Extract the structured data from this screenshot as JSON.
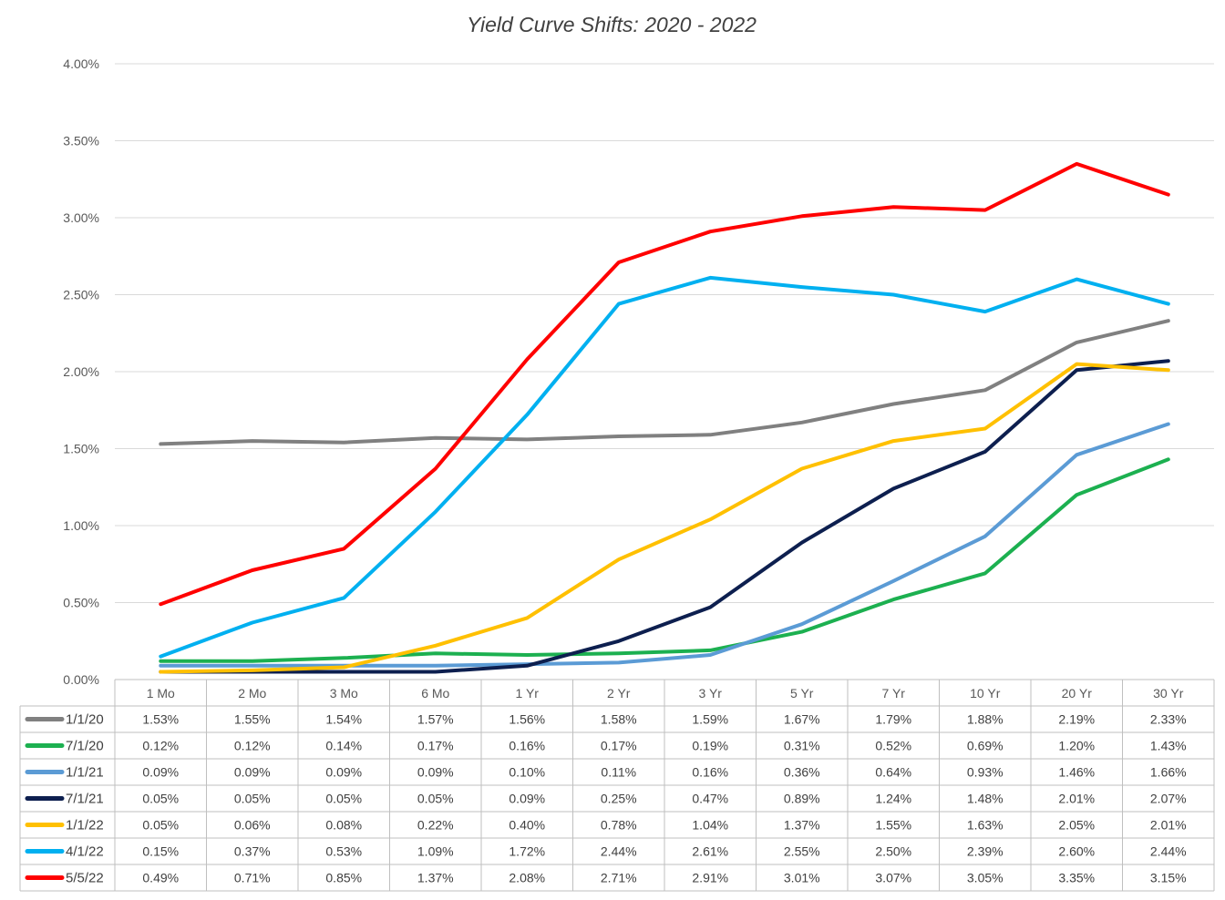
{
  "chart_data": {
    "type": "line",
    "title": "Yield Curve Shifts: 2020 - 2022",
    "categories": [
      "1 Mo",
      "2 Mo",
      "3 Mo",
      "6 Mo",
      "1 Yr",
      "2 Yr",
      "3 Yr",
      "5 Yr",
      "7 Yr",
      "10 Yr",
      "20 Yr",
      "30 Yr"
    ],
    "ylim": [
      0,
      4.0
    ],
    "yticks": [
      "0.00%",
      "0.50%",
      "1.00%",
      "1.50%",
      "2.00%",
      "2.50%",
      "3.00%",
      "3.50%",
      "4.00%"
    ],
    "grid": true,
    "data_table": true,
    "series": [
      {
        "name": "1/1/20",
        "color": "#808080",
        "values": [
          1.53,
          1.55,
          1.54,
          1.57,
          1.56,
          1.58,
          1.59,
          1.67,
          1.79,
          1.88,
          2.19,
          2.33
        ],
        "cells": [
          "1.53%",
          "1.55%",
          "1.54%",
          "1.57%",
          "1.56%",
          "1.58%",
          "1.59%",
          "1.67%",
          "1.79%",
          "1.88%",
          "2.19%",
          "2.33%"
        ]
      },
      {
        "name": "7/1/20",
        "color": "#1cb050",
        "values": [
          0.12,
          0.12,
          0.14,
          0.17,
          0.16,
          0.17,
          0.19,
          0.31,
          0.52,
          0.69,
          1.2,
          1.43
        ],
        "cells": [
          "0.12%",
          "0.12%",
          "0.14%",
          "0.17%",
          "0.16%",
          "0.17%",
          "0.19%",
          "0.31%",
          "0.52%",
          "0.69%",
          "1.20%",
          "1.43%"
        ]
      },
      {
        "name": "1/1/21",
        "color": "#5b9bd5",
        "values": [
          0.09,
          0.09,
          0.09,
          0.09,
          0.1,
          0.11,
          0.16,
          0.36,
          0.64,
          0.93,
          1.46,
          1.66
        ],
        "cells": [
          "0.09%",
          "0.09%",
          "0.09%",
          "0.09%",
          "0.10%",
          "0.11%",
          "0.16%",
          "0.36%",
          "0.64%",
          "0.93%",
          "1.46%",
          "1.66%"
        ]
      },
      {
        "name": "7/1/21",
        "color": "#0d1f4f",
        "values": [
          0.05,
          0.05,
          0.05,
          0.05,
          0.09,
          0.25,
          0.47,
          0.89,
          1.24,
          1.48,
          2.01,
          2.07
        ],
        "cells": [
          "0.05%",
          "0.05%",
          "0.05%",
          "0.05%",
          "0.09%",
          "0.25%",
          "0.47%",
          "0.89%",
          "1.24%",
          "1.48%",
          "2.01%",
          "2.07%"
        ]
      },
      {
        "name": "1/1/22",
        "color": "#ffc000",
        "values": [
          0.05,
          0.06,
          0.08,
          0.22,
          0.4,
          0.78,
          1.04,
          1.37,
          1.55,
          1.63,
          2.05,
          2.01
        ],
        "cells": [
          "0.05%",
          "0.06%",
          "0.08%",
          "0.22%",
          "0.40%",
          "0.78%",
          "1.04%",
          "1.37%",
          "1.55%",
          "1.63%",
          "2.05%",
          "2.01%"
        ]
      },
      {
        "name": "4/1/22",
        "color": "#00b0f0",
        "values": [
          0.15,
          0.37,
          0.53,
          1.09,
          1.72,
          2.44,
          2.61,
          2.55,
          2.5,
          2.39,
          2.6,
          2.44
        ],
        "cells": [
          "0.15%",
          "0.37%",
          "0.53%",
          "1.09%",
          "1.72%",
          "2.44%",
          "2.61%",
          "2.55%",
          "2.50%",
          "2.39%",
          "2.60%",
          "2.44%"
        ]
      },
      {
        "name": "5/5/22",
        "color": "#ff0000",
        "values": [
          0.49,
          0.71,
          0.85,
          1.37,
          2.08,
          2.71,
          2.91,
          3.01,
          3.07,
          3.05,
          3.35,
          3.15
        ],
        "cells": [
          "0.49%",
          "0.71%",
          "0.85%",
          "1.37%",
          "2.08%",
          "2.71%",
          "2.91%",
          "3.01%",
          "3.07%",
          "3.05%",
          "3.35%",
          "3.15%"
        ]
      }
    ]
  }
}
